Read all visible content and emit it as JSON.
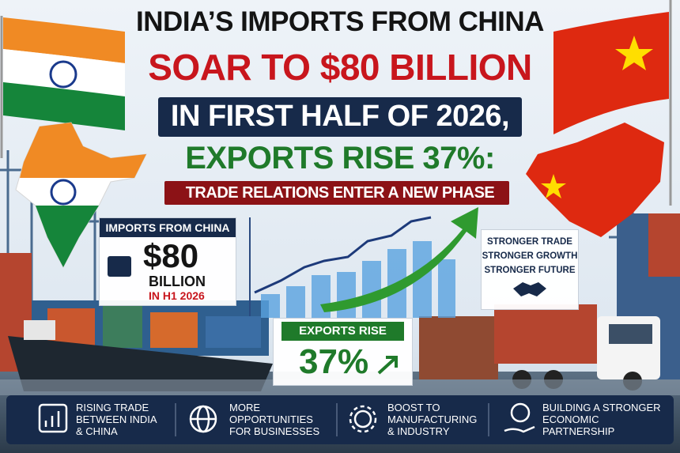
{
  "header": {
    "line1": "INDIA’S IMPORTS FROM CHINA",
    "line2": "SOAR TO $80 BILLION",
    "line3": "IN FIRST HALF OF 2026,",
    "line4": "EXPORTS RISE 37%:",
    "subtitle": "TRADE RELATIONS ENTER A NEW PHASE"
  },
  "imports_card": {
    "label": "IMPORTS FROM CHINA",
    "amount": "$80",
    "unit": "BILLION",
    "period": "IN H1 2026"
  },
  "exports_card": {
    "label": "EXPORTS RISE",
    "amount": "37%"
  },
  "slogan": {
    "lines": [
      "STRONGER TRADE",
      "STRONGER GROWTH",
      "STRONGER FUTURE"
    ]
  },
  "footer": {
    "items": [
      {
        "lines": [
          "RISING TRADE",
          "BETWEEN INDIA",
          "& CHINA"
        ]
      },
      {
        "lines": [
          "MORE",
          "OPPORTUNITIES",
          "FOR BUSINESSES"
        ]
      },
      {
        "lines": [
          "BOOST TO",
          "MANUFACTURING",
          "& INDUSTRY"
        ]
      },
      {
        "lines": [
          "BUILDING A STRONGER",
          "ECONOMIC",
          "PARTNERSHIP"
        ]
      }
    ]
  }
}
